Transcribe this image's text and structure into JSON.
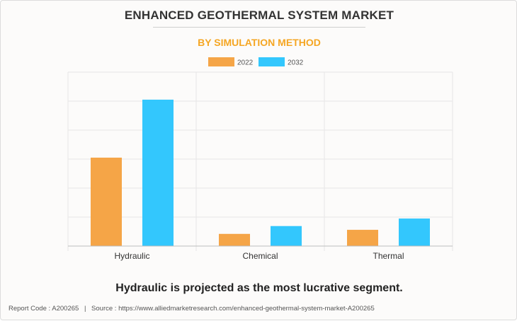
{
  "title": "ENHANCED GEOTHERMAL SYSTEM MARKET",
  "subtitle": "BY SIMULATION METHOD",
  "headline": "Hydraulic is projected as the most lucrative segment.",
  "footer": {
    "report_code": "Report Code : A200265",
    "separator": "|",
    "source": "Source : https://www.alliedmarketresearch.com/enhanced-geothermal-system-market-A200265"
  },
  "colors": {
    "2022": "#f5a547",
    "2032": "#33c7fd",
    "subtitle": "#f5a623"
  },
  "chart_data": {
    "type": "bar",
    "categories": [
      "Hydraulic",
      "Chemical",
      "Thermal"
    ],
    "series": [
      {
        "name": "2022",
        "values": [
          3.05,
          0.42,
          0.56
        ]
      },
      {
        "name": "2032",
        "values": [
          5.05,
          0.69,
          0.95
        ]
      }
    ],
    "ylim": [
      0,
      6
    ],
    "y_gridlines": 6,
    "y_tick_labels": "none",
    "legend": "top-center",
    "grid": true
  }
}
